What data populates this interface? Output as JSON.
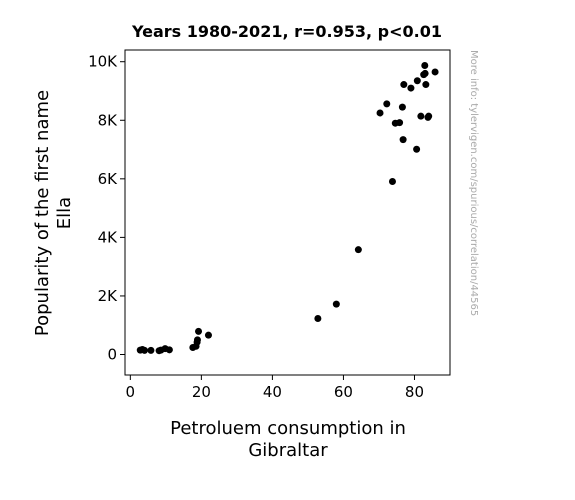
{
  "chart_data": {
    "type": "scatter",
    "title": "Years 1980-2021, r=0.953, p<0.01",
    "xlabel_lines": [
      "Petroluem consumption in",
      "Gibraltar"
    ],
    "ylabel_lines": [
      "Popularity of the first name",
      "Ella"
    ],
    "watermark": "More info: tylervigen.com/spurious/correlation/44565",
    "xlim": [
      -1.5,
      90
    ],
    "ylim": [
      -700,
      10400
    ],
    "x_ticks": [
      {
        "value": 0,
        "label": "0"
      },
      {
        "value": 20,
        "label": "20"
      },
      {
        "value": 40,
        "label": "40"
      },
      {
        "value": 60,
        "label": "60"
      },
      {
        "value": 80,
        "label": "80"
      }
    ],
    "y_ticks": [
      {
        "value": 0,
        "label": "0"
      },
      {
        "value": 2000,
        "label": "2K"
      },
      {
        "value": 4000,
        "label": "4K"
      },
      {
        "value": 6000,
        "label": "6K"
      },
      {
        "value": 8000,
        "label": "8K"
      },
      {
        "value": 10000,
        "label": "10K"
      }
    ],
    "grid": false,
    "marker_color": "#000000",
    "points": [
      {
        "x": 2.8,
        "y": 150
      },
      {
        "x": 3.4,
        "y": 170
      },
      {
        "x": 4.0,
        "y": 140
      },
      {
        "x": 5.8,
        "y": 140
      },
      {
        "x": 8.1,
        "y": 130
      },
      {
        "x": 8.6,
        "y": 150
      },
      {
        "x": 9.8,
        "y": 200
      },
      {
        "x": 11.0,
        "y": 160
      },
      {
        "x": 17.6,
        "y": 240
      },
      {
        "x": 18.5,
        "y": 280
      },
      {
        "x": 18.8,
        "y": 420
      },
      {
        "x": 18.9,
        "y": 500
      },
      {
        "x": 19.2,
        "y": 790
      },
      {
        "x": 22.0,
        "y": 660
      },
      {
        "x": 52.8,
        "y": 1230
      },
      {
        "x": 58.0,
        "y": 1720
      },
      {
        "x": 64.2,
        "y": 3580
      },
      {
        "x": 70.3,
        "y": 8250
      },
      {
        "x": 72.2,
        "y": 8560
      },
      {
        "x": 73.8,
        "y": 5910
      },
      {
        "x": 74.6,
        "y": 7900
      },
      {
        "x": 75.8,
        "y": 7920
      },
      {
        "x": 76.6,
        "y": 8450
      },
      {
        "x": 76.8,
        "y": 7340
      },
      {
        "x": 77.0,
        "y": 9220
      },
      {
        "x": 79.0,
        "y": 9100
      },
      {
        "x": 80.6,
        "y": 7010
      },
      {
        "x": 80.8,
        "y": 9350
      },
      {
        "x": 81.8,
        "y": 8140
      },
      {
        "x": 82.6,
        "y": 9560
      },
      {
        "x": 82.9,
        "y": 9870
      },
      {
        "x": 83.0,
        "y": 9600
      },
      {
        "x": 83.2,
        "y": 9220
      },
      {
        "x": 83.8,
        "y": 8100
      },
      {
        "x": 84.0,
        "y": 8140
      },
      {
        "x": 85.8,
        "y": 9650
      }
    ]
  }
}
